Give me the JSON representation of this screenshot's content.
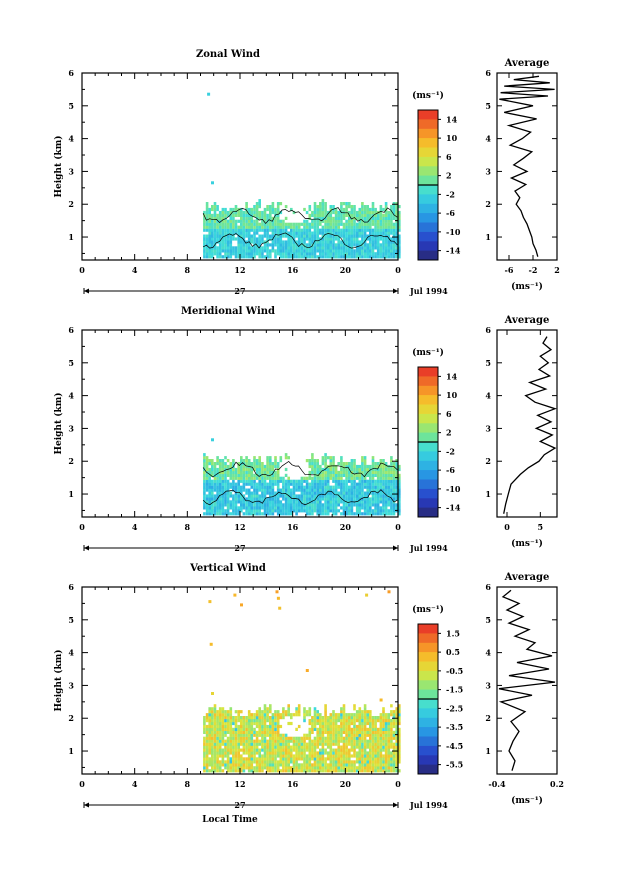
{
  "chart_data": [
    {
      "type": "heatmap",
      "title": "Zonal Wind",
      "ylabel": "Height (km)",
      "xlim": [
        0,
        24
      ],
      "ylim": [
        0.3,
        6
      ],
      "x_ticks": [
        "0",
        "4",
        "8",
        "12",
        "16",
        "20",
        "0"
      ],
      "y_ticks": [
        "1",
        "2",
        "3",
        "4",
        "5",
        "6"
      ],
      "date_day": "27",
      "date_label": "Jul 1994",
      "data_extent": {
        "x_start": 9.2,
        "x_end": 24,
        "y_top_approx": 1.9
      },
      "colorbar": {
        "unit": "(ms⁻¹)",
        "ticks": [
          "14",
          "10",
          "6",
          "2",
          "-2",
          "-6",
          "-10",
          "-14"
        ],
        "range": [
          -16,
          16
        ]
      },
      "profile": {
        "title": "Average",
        "xlabel": "(ms⁻¹)",
        "x_ticks": [
          "-6",
          "-2",
          "2"
        ],
        "xlim": [
          -8,
          2
        ],
        "y": [
          0.4,
          0.6,
          0.8,
          1.0,
          1.2,
          1.4,
          1.6,
          1.8,
          2.0,
          2.2,
          2.4,
          2.6,
          2.8,
          3.0,
          3.2,
          3.4,
          3.6,
          3.8,
          4.0,
          4.2,
          4.4,
          4.6,
          4.8,
          5.0,
          5.2,
          5.3,
          5.4,
          5.5,
          5.6,
          5.7,
          5.8,
          5.9
        ],
        "x": [
          -1.2,
          -1.5,
          -2.0,
          -2.2,
          -2.6,
          -3.0,
          -3.6,
          -4.0,
          -4.8,
          -4.2,
          -5.0,
          -3.2,
          -5.6,
          -3.0,
          -5.2,
          -3.6,
          -2.2,
          -5.8,
          -3.8,
          -2.4,
          -6.0,
          -1.4,
          -6.8,
          -2.0,
          -7.6,
          0.5,
          -7.4,
          1.6,
          -6.8,
          0.8,
          -5.2,
          -1.0
        ]
      }
    },
    {
      "type": "heatmap",
      "title": "Meridional Wind",
      "ylabel": "Height (km)",
      "xlim": [
        0,
        24
      ],
      "ylim": [
        0.3,
        6
      ],
      "x_ticks": [
        "0",
        "4",
        "8",
        "12",
        "16",
        "20",
        "0"
      ],
      "y_ticks": [
        "1",
        "2",
        "3",
        "4",
        "5",
        "6"
      ],
      "date_day": "27",
      "date_label": "Jul 1994",
      "data_extent": {
        "x_start": 9.2,
        "x_end": 24,
        "y_top_approx": 2.0
      },
      "colorbar": {
        "unit": "(ms⁻¹)",
        "ticks": [
          "14",
          "10",
          "6",
          "2",
          "-2",
          "-6",
          "-10",
          "-14"
        ],
        "range": [
          -16,
          16
        ]
      },
      "profile": {
        "title": "Average",
        "xlabel": "(ms⁻¹)",
        "x_ticks": [
          "0",
          "5"
        ],
        "xlim": [
          -1.5,
          7.5
        ],
        "y": [
          0.4,
          0.7,
          1.0,
          1.3,
          1.6,
          1.8,
          2.0,
          2.2,
          2.4,
          2.6,
          2.8,
          3.0,
          3.2,
          3.4,
          3.6,
          3.8,
          4.0,
          4.2,
          4.4,
          4.6,
          4.8,
          5.0,
          5.2,
          5.4,
          5.6,
          5.8
        ],
        "x": [
          -0.5,
          -0.2,
          0.2,
          0.6,
          2.0,
          3.2,
          4.8,
          5.6,
          7.2,
          5.0,
          6.8,
          4.4,
          6.6,
          4.6,
          7.2,
          4.2,
          2.8,
          5.8,
          3.4,
          6.4,
          4.8,
          6.2,
          5.0,
          6.6,
          5.4,
          6.0
        ]
      }
    },
    {
      "type": "heatmap",
      "title": "Vertical Wind",
      "ylabel": "Height (km)",
      "xlabel": "Local Time",
      "xlim": [
        0,
        24
      ],
      "ylim": [
        0.3,
        6
      ],
      "x_ticks": [
        "0",
        "4",
        "8",
        "12",
        "16",
        "20",
        "0"
      ],
      "y_ticks": [
        "1",
        "2",
        "3",
        "4",
        "5",
        "6"
      ],
      "date_day": "27",
      "date_label": "Jul 1994",
      "data_extent": {
        "x_start": 9.2,
        "x_end": 24,
        "y_top_approx": 2.2
      },
      "colorbar": {
        "unit": "(ms⁻¹)",
        "ticks": [
          "1.5",
          "0.5",
          "-0.5",
          "-1.5",
          "-2.5",
          "-3.5",
          "-4.5",
          "-5.5"
        ],
        "range": [
          -6.0,
          2.0
        ]
      },
      "profile": {
        "title": "Average",
        "xlabel": "(ms⁻¹)",
        "x_ticks": [
          "-0.4",
          "0.2"
        ],
        "xlim": [
          -0.4,
          0.2
        ],
        "y": [
          0.4,
          0.7,
          1.0,
          1.3,
          1.6,
          1.9,
          2.2,
          2.5,
          2.7,
          2.9,
          3.1,
          3.3,
          3.5,
          3.7,
          3.9,
          4.1,
          4.3,
          4.5,
          4.7,
          4.9,
          5.1,
          5.3,
          5.5,
          5.7,
          5.9
        ],
        "x": [
          -0.25,
          -0.22,
          -0.28,
          -0.24,
          -0.18,
          -0.26,
          -0.12,
          -0.36,
          -0.05,
          -0.38,
          0.18,
          -0.28,
          0.12,
          -0.2,
          0.15,
          -0.1,
          -0.02,
          -0.22,
          -0.08,
          -0.28,
          -0.14,
          -0.3,
          -0.18,
          -0.34,
          -0.26
        ]
      }
    }
  ]
}
